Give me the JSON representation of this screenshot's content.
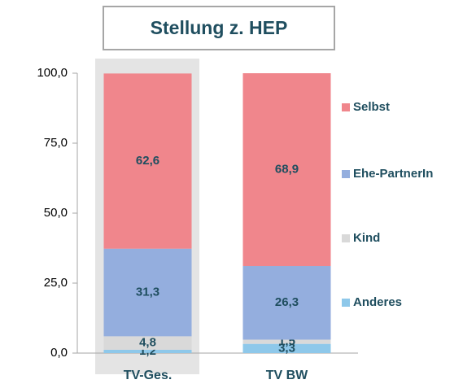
{
  "chart_data": {
    "type": "stacked_bar",
    "title": "Stellung z. HEP",
    "categories": [
      "TV-Ges.",
      "TV BW"
    ],
    "series": [
      {
        "name": "Anderes",
        "color": "#8ec8ea",
        "values": [
          1.2,
          3.3
        ],
        "value_labels": [
          "1,2",
          "3,3"
        ]
      },
      {
        "name": "Kind",
        "color": "#d9d9d9",
        "values": [
          4.8,
          1.5
        ],
        "value_labels": [
          "4,8",
          "1,5"
        ]
      },
      {
        "name": "Ehe-PartnerIn",
        "color": "#94aede",
        "values": [
          31.3,
          26.3
        ],
        "value_labels": [
          "31,3",
          "26,3"
        ]
      },
      {
        "name": "Selbst",
        "color": "#f0868c",
        "values": [
          62.6,
          68.9
        ],
        "value_labels": [
          "62,6",
          "68,9"
        ]
      }
    ],
    "ylim": [
      0,
      100
    ],
    "yticks": [
      {
        "value": 0,
        "label": "0,0"
      },
      {
        "value": 25,
        "label": "25,0"
      },
      {
        "value": 50,
        "label": "50,0"
      },
      {
        "value": 75,
        "label": "75,0"
      },
      {
        "value": 100,
        "label": "100,0"
      }
    ],
    "legend": "right"
  }
}
